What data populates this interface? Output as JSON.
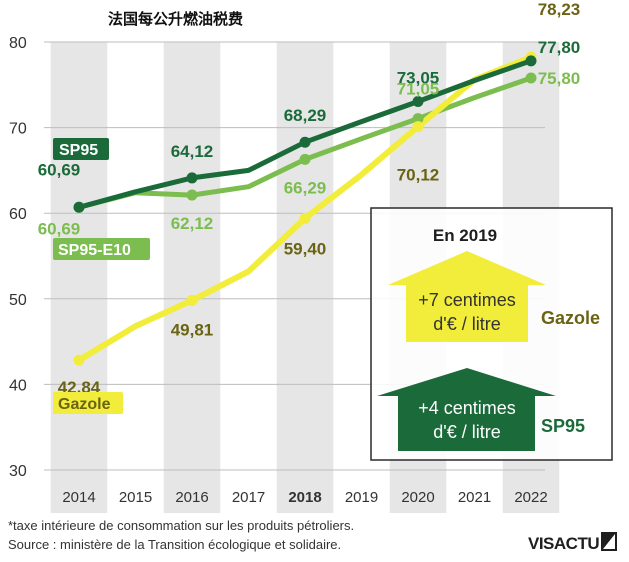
{
  "title": "法国每公升燃油税费",
  "colors": {
    "sp95": "#1b6b3a",
    "sp95_e10": "#7cbd4f",
    "gazole": "#f1ed3a",
    "gazole_text": "#6b6314",
    "band": "#e6e6e6",
    "grid": "#bdbdbd",
    "axis_text": "#333333",
    "panel_text": "#1f1f1f"
  },
  "chart_data": {
    "type": "line",
    "title": "法国每公升燃油税费",
    "x": [
      2014,
      2015,
      2016,
      2017,
      2018,
      2019,
      2020,
      2021,
      2022
    ],
    "x_tick_labels": [
      "2014",
      "2015",
      "2016",
      "2017",
      "2018",
      "2019",
      "2020",
      "2021",
      "2022"
    ],
    "highlighted_tick": "2018",
    "ylim": [
      30,
      80
    ],
    "y_ticks": [
      30,
      40,
      50,
      60,
      70,
      80
    ],
    "series": [
      {
        "name": "SP95",
        "key": "sp95",
        "values": [
          60.69,
          62.5,
          64.12,
          65.0,
          68.29,
          70.7,
          73.05,
          75.5,
          77.8
        ],
        "data_labels": [
          {
            "index": 0,
            "text": "60,69"
          },
          {
            "index": 2,
            "text": "64,12"
          },
          {
            "index": 4,
            "text": "68,29"
          },
          {
            "index": 6,
            "text": "73,05"
          },
          {
            "index": 8,
            "text": "77,80"
          }
        ]
      },
      {
        "name": "SP95-E10",
        "key": "sp95_e10",
        "values": [
          60.69,
          62.4,
          62.12,
          63.1,
          66.29,
          68.7,
          71.05,
          73.5,
          75.8
        ],
        "data_labels": [
          {
            "index": 0,
            "text": "60,69"
          },
          {
            "index": 2,
            "text": "62,12"
          },
          {
            "index": 4,
            "text": "66,29"
          },
          {
            "index": 6,
            "text": "71,05"
          },
          {
            "index": 8,
            "text": "75,80"
          }
        ]
      },
      {
        "name": "Gazole",
        "key": "gazole",
        "values": [
          42.84,
          46.8,
          49.81,
          53.2,
          59.4,
          64.5,
          70.12,
          75.6,
          78.23
        ],
        "data_labels": [
          {
            "index": 0,
            "text": "42,84"
          },
          {
            "index": 2,
            "text": "49,81"
          },
          {
            "index": 4,
            "text": "59,40"
          },
          {
            "index": 6,
            "text": "70,12"
          },
          {
            "index": 8,
            "text": "78,23"
          }
        ]
      }
    ],
    "legend": [
      "SP95",
      "SP95-E10",
      "Gazole"
    ],
    "annotation": {
      "title": "En 2019",
      "gazole_increase": "+7 centimes",
      "gazole_unit": "d'€ / litre",
      "gazole_label": "Gazole",
      "sp95_increase": "+4 centimes",
      "sp95_unit": "d'€ / litre",
      "sp95_label": "SP95"
    }
  },
  "footer": {
    "note": "*taxe intérieure de consommation sur les produits pétroliers.",
    "source": "Source : ministère de la Transition écologique et solidaire."
  },
  "brand": {
    "text": "VISACTU"
  }
}
